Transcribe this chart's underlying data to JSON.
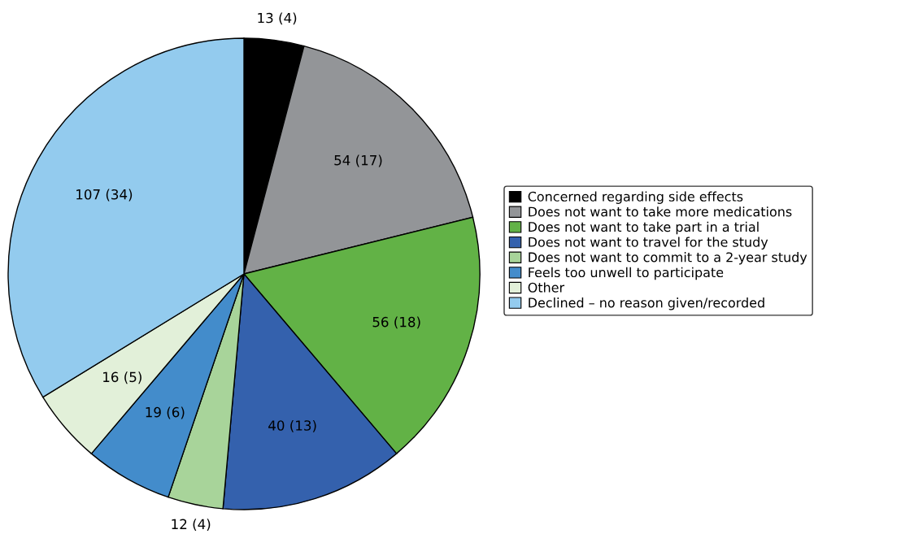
{
  "chart_data": {
    "type": "pie",
    "categories": [
      "Concerned regarding side effects",
      "Does not want to take more medications",
      "Does not want to take part in a trial",
      "Does not want to travel for the study",
      "Does not want to commit to a 2-year study",
      "Feels too unwell to participate",
      "Other",
      "Declined – no reason given/recorded"
    ],
    "values": [
      13,
      54,
      56,
      40,
      12,
      19,
      16,
      107
    ],
    "value_labels": [
      "13 (4)",
      "54 (17)",
      "56 (18)",
      "40 (13)",
      "12 (4)",
      "19 (6)",
      "16 (5)",
      "107 (34)"
    ],
    "colors": [
      "#000000",
      "#939598",
      "#62b246",
      "#3461ad",
      "#a8d49a",
      "#438ccb",
      "#e2f0d9",
      "#93cbee"
    ],
    "legend": "right"
  }
}
